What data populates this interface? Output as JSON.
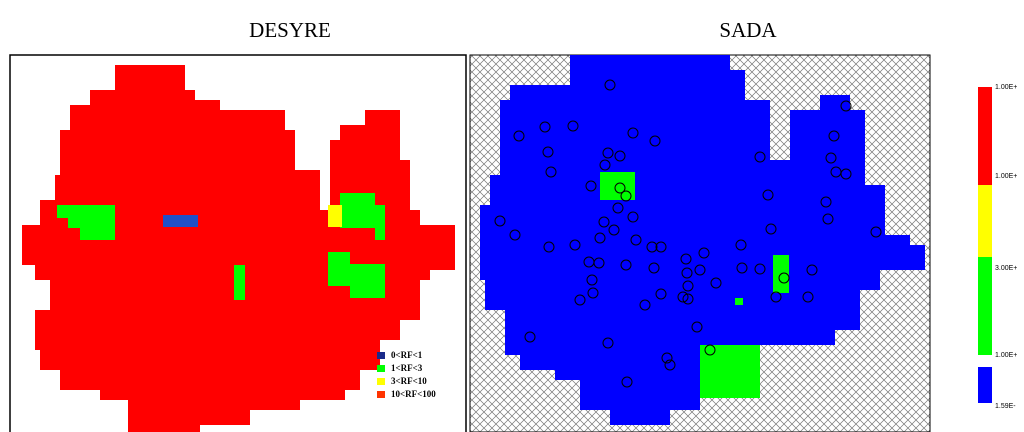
{
  "titles": {
    "left": "DESYRE",
    "right": "SADA"
  },
  "legend": [
    "0<RF<1",
    "1<RF<3",
    "3<RF<10",
    "10<RF<100"
  ],
  "colorbar": [
    "1.00E+",
    "1.00E+",
    "3.00E+",
    "1.00E+",
    "1.59E-"
  ]
}
